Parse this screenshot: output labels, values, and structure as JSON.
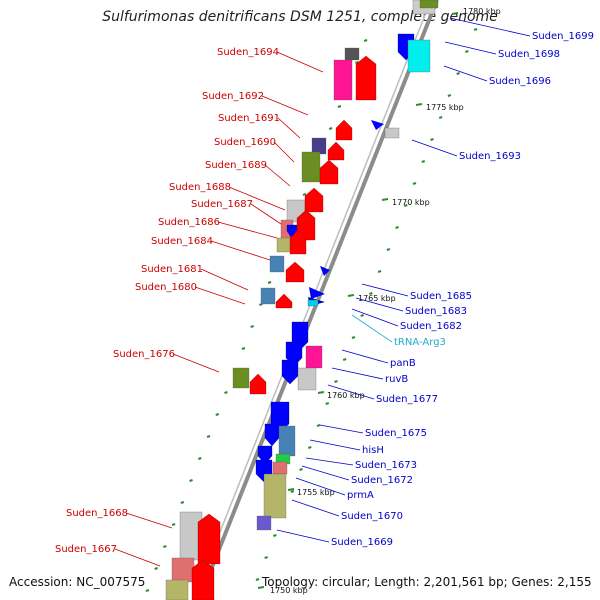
{
  "title": "Sulfurimonas denitrificans DSM 1251, complete genome",
  "footer": {
    "accession": "Accession: NC_007575",
    "summary": "Topology: circular; Length: 2,201,561 bp; Genes: 2,155"
  },
  "colors": {
    "left_label": "#cc0000",
    "right_label": "#0000cc",
    "trna_label": "#22aacc",
    "backbone": "#8c8c8c",
    "tick": "#2e8b2e"
  },
  "kbp_markers": [
    "1780 kbp",
    "1775 kbp",
    "1770 kbp",
    "1765 kbp",
    "1760 kbp",
    "1755 kbp",
    "1750 kbp"
  ],
  "left_labels": [
    "Suden_1694",
    "Suden_1692",
    "Suden_1691",
    "Suden_1690",
    "Suden_1689",
    "Suden_1688",
    "Suden_1687",
    "Suden_1686",
    "Suden_1684",
    "Suden_1681",
    "Suden_1680",
    "Suden_1676",
    "Suden_1668",
    "Suden_1667"
  ],
  "right_labels": [
    "Suden_1699",
    "Suden_1698",
    "Suden_1696",
    "Suden_1693",
    "Suden_1685",
    "Suden_1683",
    "Suden_1682",
    "tRNA-Arg3",
    "panB",
    "ruvB",
    "Suden_1677",
    "Suden_1675",
    "hisH",
    "Suden_1673",
    "Suden_1672",
    "prmA",
    "Suden_1670",
    "Suden_1669"
  ]
}
